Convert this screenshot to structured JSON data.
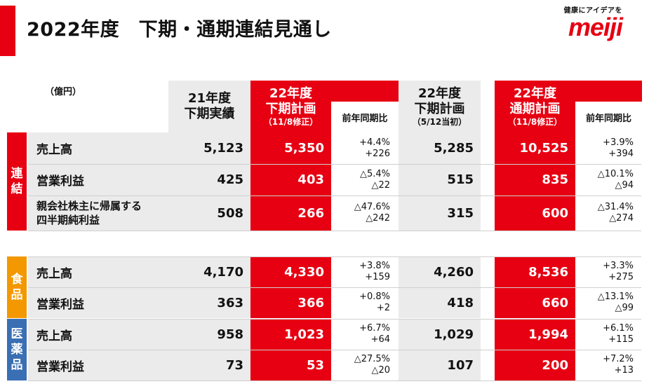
{
  "header": {
    "title": "2022年度　下期・通期連結見通し",
    "logo_text": "meiji",
    "tagline": "健康にアイデアを"
  },
  "unit": "（億円）",
  "columns": {
    "fy21_h2_actual": [
      "21年度",
      "下期実績"
    ],
    "fy22_h2_plan_revised": {
      "lines": [
        "22年度",
        "下期計画"
      ],
      "note": "（11/8修正）"
    },
    "yoy_h2": "前年同期比",
    "fy22_h2_plan_initial": {
      "lines": [
        "22年度",
        "下期計画"
      ],
      "note": "（5/12当初）"
    },
    "fy22_full_plan_revised": {
      "lines": [
        "22年度",
        "通期計画"
      ],
      "note": "（11/8修正）"
    },
    "yoy_full": "前年同期比"
  },
  "groups": [
    {
      "tab": [
        "連",
        "結"
      ],
      "color": "#e60012",
      "rows": [
        {
          "label": "売上高",
          "fy21": "5,123",
          "h2_rev": "5,350",
          "yoy_h2": [
            "+4.4%",
            "+226"
          ],
          "h2_init": "5,285",
          "full": "10,525",
          "yoy_full": [
            "+3.9%",
            "+394"
          ]
        },
        {
          "label": "営業利益",
          "fy21": "425",
          "h2_rev": "403",
          "yoy_h2": [
            "△5.4%",
            "△22"
          ],
          "h2_init": "515",
          "full": "835",
          "yoy_full": [
            "△10.1%",
            "△94"
          ]
        },
        {
          "label": [
            "親会社株主に帰属する",
            "四半期純利益"
          ],
          "fy21": "508",
          "h2_rev": "266",
          "yoy_h2": [
            "△47.6%",
            "△242"
          ],
          "h2_init": "315",
          "full": "600",
          "yoy_full": [
            "△31.4%",
            "△274"
          ]
        }
      ]
    },
    {
      "tab": [
        "食",
        "品"
      ],
      "color": "#f39800",
      "rows": [
        {
          "label": "売上高",
          "fy21": "4,170",
          "h2_rev": "4,330",
          "yoy_h2": [
            "+3.8%",
            "+159"
          ],
          "h2_init": "4,260",
          "full": "8,536",
          "yoy_full": [
            "+3.3%",
            "+275"
          ]
        },
        {
          "label": "営業利益",
          "fy21": "363",
          "h2_rev": "366",
          "yoy_h2": [
            "+0.8%",
            "+2"
          ],
          "h2_init": "418",
          "full": "660",
          "yoy_full": [
            "△13.1%",
            "△99"
          ]
        }
      ]
    },
    {
      "tab": [
        "医",
        "薬",
        "品"
      ],
      "color": "#3a6fb3",
      "rows": [
        {
          "label": "売上高",
          "fy21": "958",
          "h2_rev": "1,023",
          "yoy_h2": [
            "+6.7%",
            "+64"
          ],
          "h2_init": "1,029",
          "full": "1,994",
          "yoy_full": [
            "+6.1%",
            "+115"
          ]
        },
        {
          "label": "営業利益",
          "fy21": "73",
          "h2_rev": "53",
          "yoy_h2": [
            "△27.5%",
            "△20"
          ],
          "h2_init": "107",
          "full": "200",
          "yoy_full": [
            "+7.2%",
            "+13"
          ]
        }
      ]
    }
  ]
}
